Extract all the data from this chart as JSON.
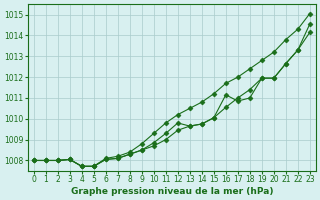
{
  "title": "Graphe pression niveau de la mer (hPa)",
  "xlabel": "Graphe pression niveau de la mer (hPa)",
  "ylim": [
    1007.5,
    1015.5
  ],
  "xlim": [
    -0.5,
    23.5
  ],
  "yticks": [
    1008,
    1009,
    1010,
    1011,
    1012,
    1013,
    1014,
    1015
  ],
  "xticks": [
    0,
    1,
    2,
    3,
    4,
    5,
    6,
    7,
    8,
    9,
    10,
    11,
    12,
    13,
    14,
    15,
    16,
    17,
    18,
    19,
    20,
    21,
    22,
    23
  ],
  "bg_color": "#d8f0f0",
  "line_color": "#1a6e1a",
  "grid_color": "#aacccc",
  "top_line": [
    1008.0,
    1008.0,
    1008.0,
    1008.05,
    1007.72,
    1007.72,
    1008.1,
    1008.2,
    1008.4,
    1008.8,
    1009.3,
    1009.8,
    1010.2,
    1010.5,
    1010.8,
    1011.2,
    1011.7,
    1012.0,
    1012.4,
    1012.8,
    1013.2,
    1013.8,
    1014.3,
    1015.05
  ],
  "mid_line": [
    1008.0,
    1008.0,
    1008.0,
    1008.05,
    1007.72,
    1007.72,
    1008.05,
    1008.1,
    1008.3,
    1008.5,
    1008.85,
    1009.3,
    1009.8,
    1009.65,
    1009.75,
    1010.05,
    1011.15,
    1010.85,
    1011.0,
    1011.95,
    1011.95,
    1012.65,
    1013.3,
    1014.15
  ],
  "bot_line": [
    1008.0,
    1008.0,
    1008.0,
    1008.05,
    1007.72,
    1007.72,
    1008.05,
    1008.1,
    1008.3,
    1008.5,
    1008.7,
    1009.0,
    1009.45,
    1009.65,
    1009.75,
    1010.05,
    1010.55,
    1011.0,
    1011.4,
    1011.95,
    1011.95,
    1012.65,
    1013.3,
    1014.55
  ]
}
